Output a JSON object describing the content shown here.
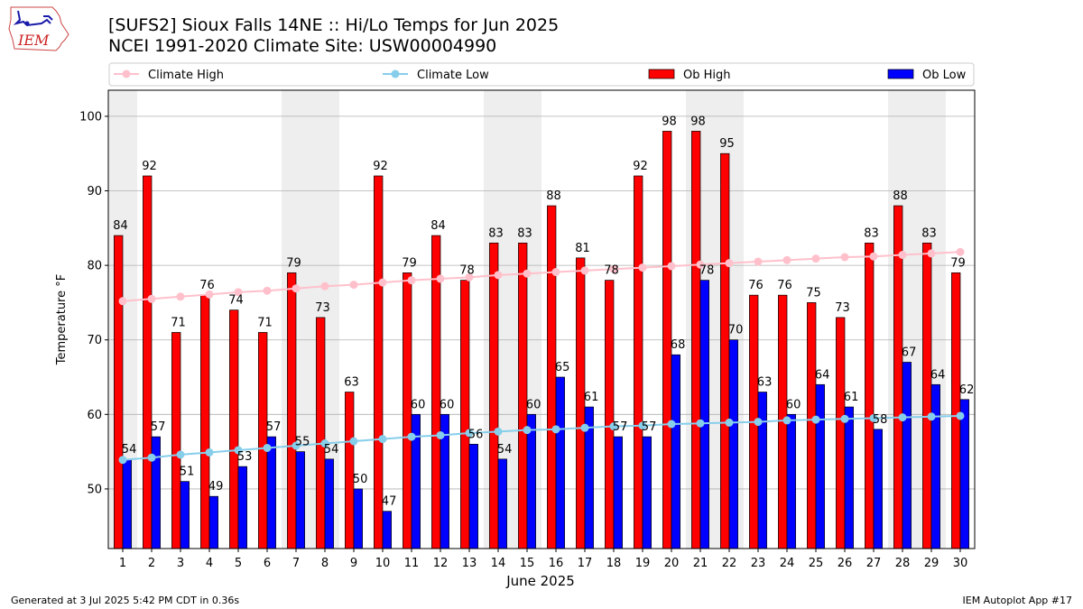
{
  "header": {
    "title_line1": "[SUFS2] Sioux Falls 14NE :: Hi/Lo Temps for Jun 2025",
    "title_line2": "NCEI 1991-2020 Climate Site: USW00004990"
  },
  "logo": {
    "text": "IEM"
  },
  "footer": {
    "left": "Generated at 3 Jul 2025 5:42 PM CDT in 0.36s",
    "right": "IEM Autoplot App #17"
  },
  "colors": {
    "ob_high": "#ff0000",
    "ob_low": "#0000ff",
    "climate_high": "#ffc0cb",
    "climate_low": "#87ceeb",
    "weekend_band": "#eeeeee"
  },
  "chart_data": {
    "type": "bar",
    "xlabel": "June 2025",
    "ylabel": "Temperature °F",
    "ylim": [
      42,
      103.5
    ],
    "yticks": [
      50,
      60,
      70,
      80,
      90,
      100
    ],
    "grid": "horizontal",
    "legend_position": "top",
    "categories": [
      "1",
      "2",
      "3",
      "4",
      "5",
      "6",
      "7",
      "8",
      "9",
      "10",
      "11",
      "12",
      "13",
      "14",
      "15",
      "16",
      "17",
      "18",
      "19",
      "20",
      "21",
      "22",
      "23",
      "24",
      "25",
      "26",
      "27",
      "28",
      "29",
      "30"
    ],
    "weekend_days": [
      1,
      7,
      8,
      14,
      15,
      21,
      22,
      28,
      29
    ],
    "series": [
      {
        "name": "Climate High",
        "kind": "line",
        "color": "#ffc0cb",
        "values": [
          75.2,
          75.5,
          75.8,
          76.1,
          76.4,
          76.6,
          76.9,
          77.2,
          77.4,
          77.7,
          78.0,
          78.2,
          78.4,
          78.7,
          78.9,
          79.1,
          79.3,
          79.5,
          79.7,
          79.9,
          80.1,
          80.3,
          80.5,
          80.7,
          80.9,
          81.1,
          81.2,
          81.4,
          81.6,
          81.8
        ]
      },
      {
        "name": "Climate Low",
        "kind": "line",
        "color": "#87ceeb",
        "values": [
          53.9,
          54.2,
          54.6,
          54.9,
          55.2,
          55.5,
          55.8,
          56.1,
          56.4,
          56.7,
          57.0,
          57.2,
          57.5,
          57.7,
          57.9,
          58.0,
          58.2,
          58.4,
          58.5,
          58.7,
          58.8,
          58.9,
          59.0,
          59.2,
          59.3,
          59.4,
          59.5,
          59.6,
          59.7,
          59.8
        ]
      },
      {
        "name": "Ob High",
        "kind": "bar",
        "color": "#ff0000",
        "values": [
          84,
          92,
          71,
          76,
          74,
          71,
          79,
          73,
          63,
          92,
          79,
          84,
          78,
          83,
          83,
          88,
          81,
          78,
          92,
          98,
          98,
          95,
          76,
          76,
          75,
          73,
          83,
          88,
          83,
          79
        ]
      },
      {
        "name": "Ob Low",
        "kind": "bar",
        "color": "#0000ff",
        "values": [
          54,
          57,
          51,
          49,
          53,
          57,
          55,
          54,
          50,
          47,
          60,
          60,
          56,
          54,
          60,
          65,
          61,
          57,
          57,
          68,
          78,
          70,
          63,
          60,
          64,
          61,
          58,
          67,
          64,
          62
        ]
      }
    ]
  }
}
